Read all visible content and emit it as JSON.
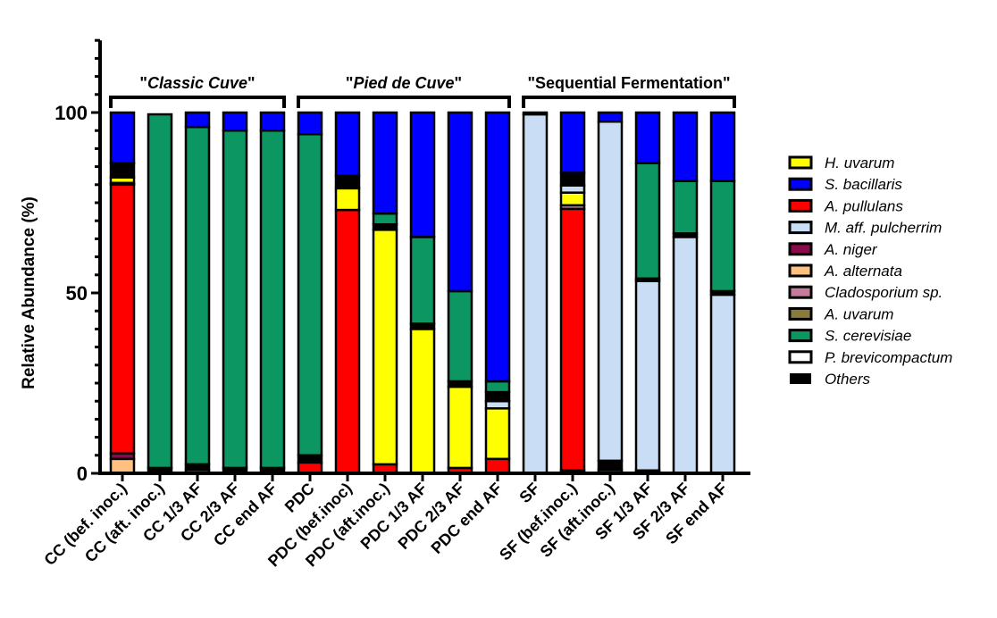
{
  "chart_data": {
    "type": "bar",
    "stacked": true,
    "title": "",
    "xlabel": "",
    "ylabel": "Relative Abundance (%)",
    "ylim": [
      0,
      120
    ],
    "yticks": [
      0,
      50,
      100
    ],
    "grid": false,
    "legend_position": "right",
    "categories": [
      "CC (bef. inoc.)",
      "CC (aft. inoc.)",
      "CC 1/3 AF",
      "CC 2/3 AF",
      "CC end AF",
      "PDC",
      "PDC (bef.inoc)",
      "PDC (aft.inoc.)",
      "PDC 1/3 AF",
      "PDC 2/3 AF",
      "PDC end AF",
      "SF",
      "SF (bef.inoc.)",
      "SF (aft.inoc.)",
      "SF 1/3 AF",
      "SF 2/3 AF",
      "SF end AF"
    ],
    "groups": [
      {
        "label_prefix": "\"",
        "label_italic": "Classic Cuve",
        "label_suffix": "\"",
        "from": 0,
        "to": 4
      },
      {
        "label_prefix": "\"",
        "label_italic": "Pied de Cuve",
        "label_suffix": "\"",
        "from": 5,
        "to": 10
      },
      {
        "label_prefix": "\"Sequential Fermentation\"",
        "label_italic": "",
        "label_suffix": "",
        "from": 11,
        "to": 16
      }
    ],
    "series": [
      {
        "name": "H. uvarum",
        "color": "#ffff00",
        "values": [
          1.5,
          0,
          0,
          0,
          0,
          0,
          6,
          65,
          40,
          22.5,
          14,
          0,
          3.5,
          0,
          0,
          0,
          0
        ]
      },
      {
        "name": "S. bacillaris",
        "color": "#0000ff",
        "values": [
          14,
          0,
          4,
          5,
          5,
          6,
          17.5,
          28,
          34.5,
          49.5,
          74.5,
          0,
          16.7,
          2.5,
          14,
          19,
          19
        ]
      },
      {
        "name": "A. pullulans",
        "color": "#ff0000",
        "values": [
          74.5,
          0,
          1,
          0,
          0,
          3,
          73,
          2.5,
          0,
          1.5,
          4,
          0,
          72.5,
          0,
          0,
          0,
          0
        ]
      },
      {
        "name": "M. aff. pulcherrim",
        "color": "#c9ddf5",
        "values": [
          0,
          0,
          0,
          0,
          0,
          0,
          0,
          0,
          0,
          0,
          2,
          99.5,
          2,
          94,
          52.5,
          65.5,
          49.5
        ]
      },
      {
        "name": "A. niger",
        "color": "#8b0a4a",
        "values": [
          1.5,
          0,
          0,
          0,
          0,
          0,
          0,
          0,
          0,
          0,
          0,
          0,
          0,
          1,
          0,
          0,
          0
        ]
      },
      {
        "name": "A. alternata",
        "color": "#ffc080",
        "values": [
          4,
          0,
          0,
          0,
          0,
          0,
          0,
          0,
          0,
          0,
          0,
          0,
          0,
          0,
          0,
          0,
          0
        ]
      },
      {
        "name": "Cladosporium sp.",
        "color": "#c77b9b",
        "values": [
          0.5,
          0,
          0,
          0,
          0,
          0,
          0,
          0,
          0,
          0,
          0,
          0,
          1,
          0,
          0,
          0,
          0
        ]
      },
      {
        "name": "A. uvarum",
        "color": "#8b7b3a",
        "values": [
          0,
          0,
          0,
          0,
          0,
          0,
          0,
          0,
          0,
          0,
          0,
          0,
          0.8,
          0,
          0.8,
          0,
          0
        ]
      },
      {
        "name": "S. cerevisiae",
        "color": "#0b9662",
        "values": [
          0,
          98,
          93.5,
          93.5,
          93.5,
          89,
          0,
          3,
          24,
          25,
          3,
          0,
          0,
          0,
          32,
          14.5,
          30.5
        ]
      },
      {
        "name": "P. brevicompactum",
        "color": "#ffffff",
        "values": [
          0,
          0,
          0,
          0,
          0,
          0,
          0,
          0,
          0,
          0,
          0,
          0,
          0,
          0,
          0,
          0,
          0
        ]
      },
      {
        "name": "Others",
        "color": "#000000",
        "values": [
          4,
          1.5,
          1.5,
          1.5,
          1.5,
          2,
          3.5,
          1.5,
          1.5,
          1.5,
          2.5,
          0.5,
          3.5,
          2.5,
          0.7,
          1,
          1
        ]
      }
    ],
    "stack_order": [
      "A. alternata",
      "A. niger",
      "A. uvarum",
      "A. pullulans",
      "Cladosporium sp.",
      "H. uvarum",
      "M. aff. pulcherrim",
      "Others",
      "S. cerevisiae",
      "S. bacillaris"
    ],
    "custom_stacks": {
      "1": [
        "Others",
        "S. cerevisiae"
      ],
      "2": [
        "A. pullulans",
        "Others",
        "S. cerevisiae",
        "S. bacillaris"
      ],
      "3": [
        "Others",
        "S. cerevisiae",
        "S. bacillaris"
      ],
      "4": [
        "Others",
        "S. cerevisiae",
        "S. bacillaris"
      ],
      "5": [
        "A. pullulans",
        "Others",
        "S. cerevisiae",
        "S. bacillaris"
      ],
      "11": [
        "M. aff. pulcherrim",
        "Others"
      ],
      "13": [
        "A. niger",
        "Others",
        "M. aff. pulcherrim",
        "S. bacillaris"
      ]
    }
  }
}
